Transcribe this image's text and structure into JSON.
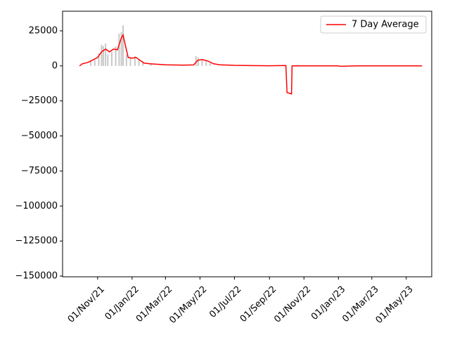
{
  "chart_data": {
    "type": "line",
    "xlim": [
      "2021-08-31",
      "2023-06-15"
    ],
    "ylim": [
      -150500,
      39000
    ],
    "xticks": [
      {
        "value": "2021-11-01",
        "label": "01/Nov/21"
      },
      {
        "value": "2022-01-01",
        "label": "01/Jan/22"
      },
      {
        "value": "2022-03-01",
        "label": "01/Mar/22"
      },
      {
        "value": "2022-05-01",
        "label": "01/May/22"
      },
      {
        "value": "2022-07-01",
        "label": "01/Jul/22"
      },
      {
        "value": "2022-09-01",
        "label": "01/Sep/22"
      },
      {
        "value": "2022-11-01",
        "label": "01/Nov/22"
      },
      {
        "value": "2023-01-01",
        "label": "01/Jan/23"
      },
      {
        "value": "2023-03-01",
        "label": "01/Mar/23"
      },
      {
        "value": "2023-05-01",
        "label": "01/May/23"
      }
    ],
    "yticks": [
      25000,
      0,
      {
        "value": -25000,
        "label": "−25000"
      },
      {
        "value": -50000,
        "label": "−50000"
      },
      {
        "value": -75000,
        "label": "−75000"
      },
      {
        "value": -100000,
        "label": "−100000"
      },
      {
        "value": -125000,
        "label": "−125000"
      },
      {
        "value": -150000,
        "label": "−150000"
      }
    ],
    "legend": "upper right",
    "bars": {
      "color": "#c8c8c8",
      "x": [
        "2021-10-20",
        "2021-10-27",
        "2021-11-03",
        "2021-11-08",
        "2021-11-11",
        "2021-11-15",
        "2021-11-19",
        "2021-11-26",
        "2021-12-03",
        "2021-12-09",
        "2021-12-13",
        "2021-12-16",
        "2021-12-22",
        "2021-12-29",
        "2022-01-06",
        "2022-01-13",
        "2022-01-20",
        "2022-02-03",
        "2022-04-24",
        "2022-04-28",
        "2022-05-05",
        "2022-05-12",
        "2022-05-19"
      ],
      "values": [
        3000,
        4000,
        9000,
        15000,
        14000,
        16000,
        8000,
        10000,
        14000,
        23000,
        24000,
        29000,
        8000,
        6000,
        7000,
        5000,
        3000,
        2000,
        7000,
        6000,
        5000,
        4000,
        2000
      ]
    },
    "series": [
      {
        "name": "7 Day Average",
        "color": "#ff0000",
        "x": [
          "2021-09-30",
          "2021-10-05",
          "2021-10-15",
          "2021-10-25",
          "2021-11-01",
          "2021-11-08",
          "2021-11-15",
          "2021-11-22",
          "2021-11-29",
          "2021-12-06",
          "2021-12-13",
          "2021-12-16",
          "2021-12-20",
          "2021-12-25",
          "2022-01-01",
          "2022-01-08",
          "2022-01-15",
          "2022-01-22",
          "2022-02-01",
          "2022-03-01",
          "2022-04-01",
          "2022-04-20",
          "2022-04-27",
          "2022-05-05",
          "2022-05-15",
          "2022-05-25",
          "2022-06-05",
          "2022-07-01",
          "2022-08-01",
          "2022-09-01",
          "2022-09-30",
          "2022-10-02",
          "2022-10-10",
          "2022-10-11",
          "2022-12-31",
          "2023-01-05",
          "2023-02-01",
          "2023-05-29"
        ],
        "values": [
          0,
          1500,
          2500,
          4500,
          6000,
          10000,
          12000,
          10000,
          12000,
          11500,
          20000,
          22000,
          15000,
          6000,
          5500,
          6000,
          4000,
          2000,
          1500,
          800,
          500,
          700,
          4000,
          4500,
          3500,
          1500,
          800,
          400,
          200,
          100,
          300,
          -19000,
          -20000,
          0,
          0,
          -300,
          0,
          0
        ]
      }
    ]
  }
}
